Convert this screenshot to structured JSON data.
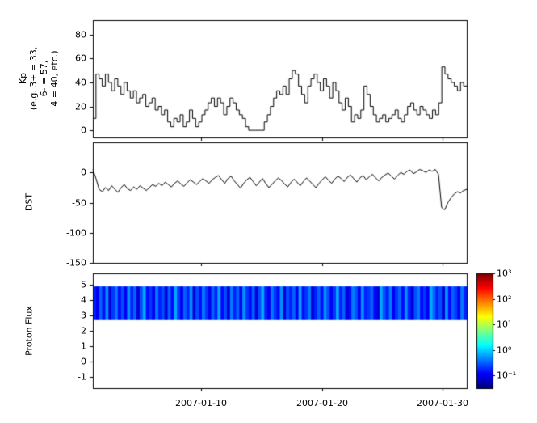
{
  "chart_data": [
    {
      "type": "line",
      "name": "kp-index-panel",
      "ylabel": "Kp\n(e.g. 3+ = 33,\n6- = 57,\n4 = 40, etc.)",
      "ylim": [
        -6,
        92
      ],
      "yticks": [
        80,
        60,
        40,
        20,
        0
      ],
      "x_start": "2007-01-01",
      "x_end": "2007-02-01",
      "xticks_days": [
        10,
        20,
        30
      ],
      "xticklabels": [
        "2007-01-10",
        "2007-01-20",
        "2007-01-30"
      ],
      "line_color": "#000000",
      "step": true,
      "values": [
        10,
        47,
        43,
        37,
        47,
        40,
        33,
        43,
        37,
        30,
        40,
        33,
        27,
        33,
        23,
        27,
        30,
        20,
        23,
        27,
        17,
        20,
        13,
        17,
        7,
        3,
        10,
        7,
        13,
        3,
        7,
        17,
        10,
        3,
        7,
        13,
        17,
        23,
        27,
        20,
        27,
        23,
        13,
        20,
        27,
        23,
        17,
        13,
        10,
        3,
        0,
        0,
        0,
        0,
        0,
        7,
        13,
        20,
        27,
        33,
        30,
        37,
        30,
        43,
        50,
        47,
        37,
        30,
        23,
        37,
        43,
        47,
        40,
        33,
        43,
        37,
        27,
        40,
        33,
        23,
        17,
        27,
        20,
        7,
        13,
        10,
        17,
        37,
        30,
        20,
        13,
        7,
        10,
        13,
        7,
        10,
        13,
        17,
        10,
        7,
        13,
        20,
        23,
        17,
        13,
        20,
        17,
        13,
        10,
        17,
        13,
        23,
        53,
        47,
        43,
        40,
        37,
        33,
        40,
        37
      ]
    },
    {
      "type": "line",
      "name": "dst-panel",
      "ylabel": "DST",
      "ylim": [
        -150,
        50
      ],
      "yticks": [
        0,
        -50,
        -100,
        -150
      ],
      "line_color": "#000000",
      "step": false,
      "values": [
        5,
        -10,
        -28,
        -32,
        -25,
        -30,
        -22,
        -28,
        -33,
        -25,
        -20,
        -27,
        -30,
        -24,
        -28,
        -22,
        -26,
        -30,
        -25,
        -20,
        -23,
        -18,
        -22,
        -16,
        -20,
        -24,
        -18,
        -14,
        -19,
        -23,
        -17,
        -12,
        -16,
        -20,
        -15,
        -10,
        -14,
        -18,
        -12,
        -8,
        -5,
        -12,
        -18,
        -10,
        -6,
        -14,
        -20,
        -26,
        -18,
        -12,
        -8,
        -15,
        -22,
        -16,
        -10,
        -18,
        -25,
        -20,
        -14,
        -9,
        -13,
        -19,
        -24,
        -17,
        -11,
        -16,
        -22,
        -15,
        -9,
        -14,
        -20,
        -25,
        -18,
        -12,
        -7,
        -13,
        -18,
        -11,
        -6,
        -10,
        -15,
        -8,
        -4,
        -10,
        -16,
        -9,
        -5,
        -12,
        -7,
        -3,
        -9,
        -14,
        -8,
        -4,
        -1,
        -6,
        -11,
        -5,
        0,
        -3,
        2,
        4,
        -2,
        1,
        5,
        3,
        0,
        4,
        2,
        5,
        -3,
        -58,
        -62,
        -50,
        -42,
        -36,
        -32,
        -34,
        -30,
        -28
      ]
    },
    {
      "type": "heatmap",
      "name": "proton-flux-panel",
      "ylabel": "Proton Flux",
      "ylim": [
        -1.75,
        5.75
      ],
      "yticks": [
        5,
        4,
        3,
        2,
        1,
        0,
        -1
      ],
      "band_y_range": [
        2.7,
        4.9
      ],
      "log10_flux_columns": [
        -0.8,
        -1.0,
        -0.5,
        -0.9,
        -0.3,
        -1.1,
        -0.7,
        -0.4,
        -0.9,
        -0.6,
        -1.0,
        -0.3,
        -0.8,
        -0.5,
        -1.1,
        -0.6,
        -0.2,
        -0.9,
        -0.7,
        -1.0,
        -0.4,
        -0.8,
        -0.6,
        -1.1,
        -0.5,
        -0.9,
        -0.2,
        -0.7,
        -1.0,
        -0.5,
        -0.8,
        -0.3,
        -1.1,
        -0.6,
        -0.9,
        -0.4,
        -0.7,
        -1.0,
        -0.5,
        -0.8,
        -0.2,
        -0.9,
        -0.6,
        -1.1,
        -0.4,
        -0.8,
        -0.5,
        -1.0,
        -0.3,
        -0.7,
        -0.9,
        -0.5,
        -1.1,
        -0.6,
        -0.2,
        -0.8,
        -1.0,
        -0.4,
        -0.7,
        -0.9,
        -0.3,
        -1.1,
        -0.6,
        -0.8,
        -0.5,
        -1.0,
        -0.2,
        -0.9,
        -0.7,
        -0.4,
        -1.1,
        -0.8,
        -0.5,
        -0.9,
        -0.3,
        -0.6,
        -1.0,
        -0.7,
        -0.2,
        -0.8,
        -0.5,
        -1.1,
        -0.9,
        -0.4,
        -0.6,
        -1.0,
        -0.3,
        -0.8,
        -0.7,
        -0.5,
        -0.9,
        -1.1,
        -0.2,
        -0.6,
        -0.8,
        -0.4,
        -1.0,
        -0.7,
        -0.5,
        -0.9,
        -0.3,
        -0.8,
        -1.1,
        -0.6,
        -0.4,
        -0.9,
        -0.7,
        -1.0,
        -0.2,
        -0.5,
        -0.8,
        -0.6,
        -1.1,
        -0.3,
        -0.9,
        -0.5,
        -0.7,
        -1.0,
        -0.4,
        -0.8
      ],
      "colorbar": {
        "scale": "log",
        "colormap": "jet",
        "range_log10": [
          -1.5,
          3
        ],
        "tick_values_log10": [
          3,
          2,
          1,
          0,
          -1
        ],
        "tick_labels": [
          "10³",
          "10²",
          "10¹",
          "10⁰",
          "10⁻¹"
        ]
      }
    }
  ]
}
